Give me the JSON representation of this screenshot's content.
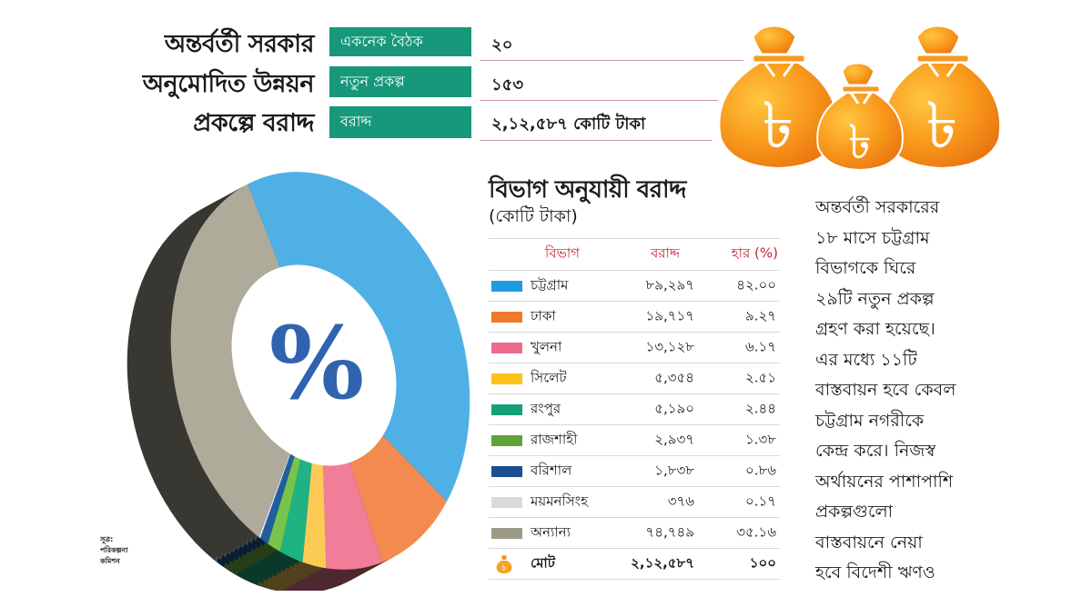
{
  "header": {
    "title_lines": [
      "অন্তর্বর্তী সরকার",
      "অনুমোদিত উন্নয়ন",
      "প্রকল্পে বরাদ্দ"
    ],
    "stats": [
      {
        "label": "একনেক বৈঠক",
        "value": "২০"
      },
      {
        "label": "নতুন প্রকল্প",
        "value": "১৫৩"
      },
      {
        "label": "বরাদ্দ",
        "value": "২,১২,৫৮৭ কোটি টাকা"
      }
    ],
    "icon": "money-bags-taka-icon"
  },
  "section": {
    "title": "বিভাগ অনুযায়ী বরাদ্দ",
    "subtitle": "(কোটি টাকা)"
  },
  "table": {
    "headers": {
      "division": "বিভাগ",
      "allocation": "বরাদ্দ",
      "rate": "হার (%)"
    },
    "rows": [
      {
        "name": "চট্টগ্রাম",
        "amount": "৮৯,২৯৭",
        "pct": "৪২.০০",
        "color": "#1f9be0"
      },
      {
        "name": "ঢাকা",
        "amount": "১৯,৭১৭",
        "pct": "৯.২৭",
        "color": "#f07a2a"
      },
      {
        "name": "খুলনা",
        "amount": "১৩,১২৮",
        "pct": "৬.১৭",
        "color": "#ef6b8e"
      },
      {
        "name": "সিলেট",
        "amount": "৫,৩৫৪",
        "pct": "২.৫১",
        "color": "#fbc219"
      },
      {
        "name": "রংপুর",
        "amount": "৫,১৯০",
        "pct": "২.৪৪",
        "color": "#16a077"
      },
      {
        "name": "রাজশাহী",
        "amount": "২,৯৩৭",
        "pct": "১.৩৮",
        "color": "#5fa33a"
      },
      {
        "name": "বরিশাল",
        "amount": "১,৮৩৮",
        "pct": "০.৮৬",
        "color": "#1b4f92"
      },
      {
        "name": "ময়মনসিংহ",
        "amount": "৩৭৬",
        "pct": "০.১৭",
        "color": "#d9dadc"
      },
      {
        "name": "অন্যান্য",
        "amount": "৭৪,৭৪৯",
        "pct": "৩৫.১৬",
        "color": "#9c9c86"
      }
    ],
    "total": {
      "name": "মোট",
      "amount": "২,১২,৫৮৭",
      "pct": "১০০",
      "icon": "money-bag-icon"
    }
  },
  "donut": {
    "center_symbol": "%",
    "symbol_color": "#2f63b0"
  },
  "note": "অন্তর্বর্তী সরকারের\n১৮ মাসে চট্টগ্রাম\nবিভাগকে ঘিরে\n২৯টি নতুন প্রকল্প\nগ্রহণ করা হয়েছে।\nএর মধ্যে ১১টি\nবাস্তবায়ন হবে কেবল\nচট্টগ্রাম নগরীকে\nকেন্দ্র করে। নিজস্ব\nঅর্থায়নের পাশাপাশি\nপ্রকল্পগুলো\nবাস্তবায়নে নেয়া\nহবে বিদেশী ঋণও",
  "source": "সূত্র:\nপরিকল্পনা\nকমিশন",
  "chart_data": {
    "type": "pie",
    "title": "বিভাগ অনুযায়ী বরাদ্দ",
    "subtitle": "(কোটি টাকা)",
    "categories": [
      "চট্টগ্রাম",
      "ঢাকা",
      "খুলনা",
      "সিলেট",
      "রংপুর",
      "রাজশাহী",
      "বরিশাল",
      "ময়মনসিংহ",
      "অন্যান্য"
    ],
    "values": [
      89297,
      19717,
      13128,
      5354,
      5190,
      2937,
      1838,
      376,
      74749
    ],
    "percentages": [
      42.0,
      9.27,
      6.17,
      2.51,
      2.44,
      1.38,
      0.86,
      0.17,
      35.16
    ],
    "colors": [
      "#4fb0e6",
      "#f38a50",
      "#f27d98",
      "#fccb56",
      "#1fb384",
      "#78c34a",
      "#1f5fa0",
      "#e3e4e6",
      "#aeab9a"
    ],
    "total": 212587,
    "unit": "কোটি টাকা",
    "legend_position": "right-table",
    "donut": true
  }
}
